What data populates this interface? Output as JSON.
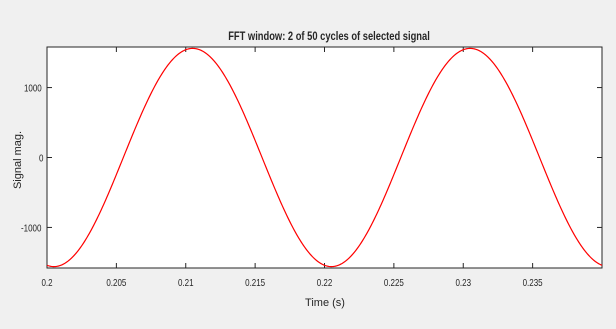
{
  "chart_data": {
    "type": "line",
    "title": "FFT window: 2 of 50 cycles of selected signal",
    "xlabel": "Time (s)",
    "ylabel": "Signal mag.",
    "xlim": [
      0.2,
      0.24
    ],
    "ylim": [
      -1580,
      1580
    ],
    "x_ticks": [
      0.2,
      0.205,
      0.21,
      0.215,
      0.22,
      0.225,
      0.23,
      0.235
    ],
    "x_tick_labels": [
      "0.2",
      "0.205",
      "0.21",
      "0.215",
      "0.22",
      "0.225",
      "0.23",
      "0.235"
    ],
    "y_ticks": [
      -1000,
      0,
      1000
    ],
    "y_tick_labels": [
      "-1000",
      "0",
      "1000"
    ],
    "grid": false,
    "series": [
      {
        "color": "#ff0000",
        "function": "-A*cos(2*pi*f*(t-t0))",
        "amplitude": 1560,
        "frequency_hz": 50,
        "t0": 0.2005,
        "t_range": [
          0.2,
          0.24
        ]
      }
    ]
  }
}
